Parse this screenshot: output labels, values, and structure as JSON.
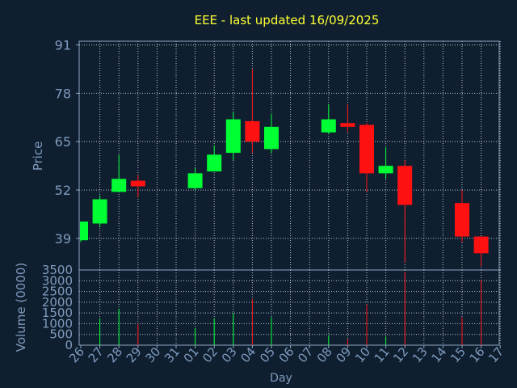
{
  "colors": {
    "background": "#0f1f30",
    "title": "#ffff33",
    "axis_text": "#7f9bbd",
    "axis_line": "#8fa4c0",
    "grid": "#b8c4d2",
    "up": "#00ff33",
    "down": "#ff1111"
  },
  "chart_data": [
    {
      "type": "candlestick",
      "title": "EEE - last updated 16/09/2025",
      "ylabel": "Price",
      "ylim": [
        30.5,
        92
      ],
      "yticks": [
        39,
        52,
        65,
        78,
        91
      ],
      "grid": true,
      "categories": [
        "26",
        "27",
        "28",
        "29",
        "30",
        "31",
        "01",
        "02",
        "03",
        "04",
        "05",
        "06",
        "07",
        "08",
        "09",
        "10",
        "11",
        "12",
        "13",
        "14",
        "15",
        "16",
        "17"
      ],
      "ohlc": [
        {
          "x": "26",
          "open": 38.5,
          "high": 43.5,
          "low": 38.0,
          "close": 43.5
        },
        {
          "x": "27",
          "open": 43.0,
          "high": 50.5,
          "low": 42.0,
          "close": 49.5
        },
        {
          "x": "28",
          "open": 51.5,
          "high": 61.5,
          "low": 51.5,
          "close": 55.0
        },
        {
          "x": "29",
          "open": 54.5,
          "high": 56.0,
          "low": 50.0,
          "close": 53.0
        },
        {
          "x": "01",
          "open": 52.5,
          "high": 58.0,
          "low": 52.0,
          "close": 56.5
        },
        {
          "x": "02",
          "open": 57.0,
          "high": 64.0,
          "low": 57.0,
          "close": 61.5
        },
        {
          "x": "03",
          "open": 62.0,
          "high": 73.0,
          "low": 60.0,
          "close": 71.0
        },
        {
          "x": "04",
          "open": 70.5,
          "high": 84.5,
          "low": 62.0,
          "close": 65.0
        },
        {
          "x": "05",
          "open": 63.0,
          "high": 72.5,
          "low": 62.0,
          "close": 69.0
        },
        {
          "x": "08",
          "open": 67.5,
          "high": 75.0,
          "low": 67.0,
          "close": 71.0
        },
        {
          "x": "09",
          "open": 70.0,
          "high": 75.0,
          "low": 67.5,
          "close": 69.0
        },
        {
          "x": "10",
          "open": 69.5,
          "high": 70.0,
          "low": 51.5,
          "close": 56.5
        },
        {
          "x": "11",
          "open": 56.5,
          "high": 63.5,
          "low": 55.0,
          "close": 58.5
        },
        {
          "x": "12",
          "open": 58.5,
          "high": 60.0,
          "low": 32.5,
          "close": 48.0
        },
        {
          "x": "15",
          "open": 48.5,
          "high": 52.0,
          "low": 38.0,
          "close": 39.5
        },
        {
          "x": "16",
          "open": 39.5,
          "high": 39.5,
          "low": 31.5,
          "close": 35.0
        }
      ]
    },
    {
      "type": "bar",
      "ylabel": "Volume (0000)",
      "xlabel": "Day",
      "ylim": [
        0,
        3500
      ],
      "yticks": [
        0,
        500,
        1000,
        1500,
        2000,
        2500,
        3000,
        3500
      ],
      "grid": true,
      "categories": [
        "26",
        "27",
        "28",
        "29",
        "30",
        "31",
        "01",
        "02",
        "03",
        "04",
        "05",
        "06",
        "07",
        "08",
        "09",
        "10",
        "11",
        "12",
        "13",
        "14",
        "15",
        "16",
        "17"
      ],
      "bars": [
        {
          "x": "27",
          "value": 1250,
          "dir": "up"
        },
        {
          "x": "28",
          "value": 1700,
          "dir": "up"
        },
        {
          "x": "29",
          "value": 1000,
          "dir": "down"
        },
        {
          "x": "01",
          "value": 800,
          "dir": "up"
        },
        {
          "x": "02",
          "value": 1250,
          "dir": "up"
        },
        {
          "x": "03",
          "value": 1500,
          "dir": "up"
        },
        {
          "x": "04",
          "value": 2150,
          "dir": "down"
        },
        {
          "x": "05",
          "value": 1300,
          "dir": "up"
        },
        {
          "x": "08",
          "value": 450,
          "dir": "up"
        },
        {
          "x": "09",
          "value": 300,
          "dir": "down"
        },
        {
          "x": "10",
          "value": 1900,
          "dir": "down"
        },
        {
          "x": "11",
          "value": 400,
          "dir": "up"
        },
        {
          "x": "12",
          "value": 3400,
          "dir": "down"
        },
        {
          "x": "15",
          "value": 1300,
          "dir": "down"
        },
        {
          "x": "16",
          "value": 3050,
          "dir": "down"
        }
      ]
    }
  ]
}
